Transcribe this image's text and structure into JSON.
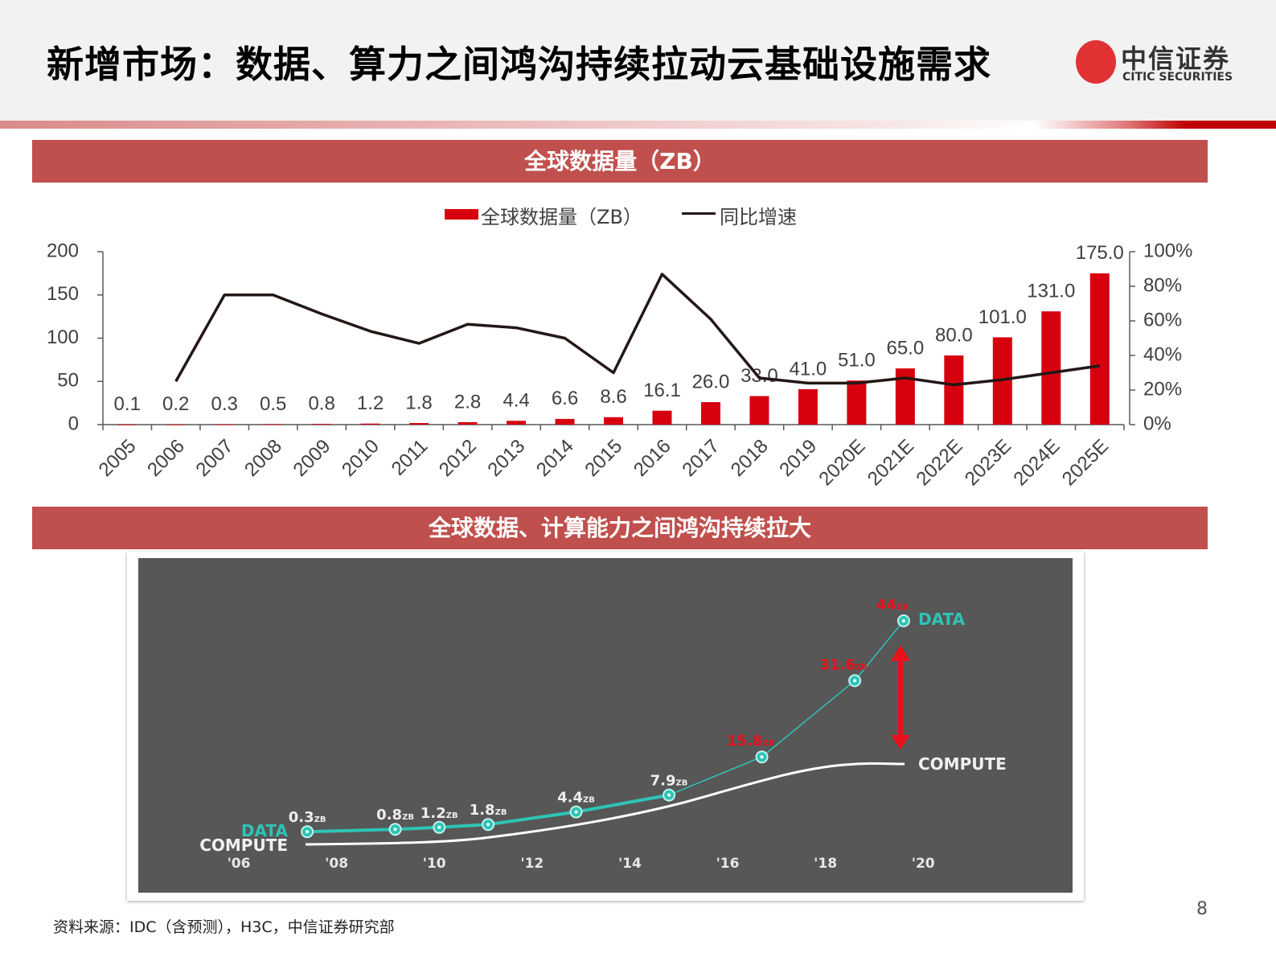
{
  "header": {
    "title": "新增市场：数据、算力之间鸿沟持续拉动云基础设施需求",
    "logo_cn": "中信证券",
    "logo_en": "CITIC SECURITIES"
  },
  "colors": {
    "banner": "#c0504d",
    "bar": "#d7000f",
    "line": "#231815",
    "data_line": "#2ec4b6",
    "highlight": "#e8101a"
  },
  "banner_top": "全球数据量（ZB）",
  "banner_bottom": "全球数据、计算能力之间鸿沟持续拉大",
  "chart_data": [
    {
      "type": "bar+line",
      "title": "",
      "legend": {
        "bar": "全球数据量（ZB）",
        "line": "同比增速",
        "placement": "top-center"
      },
      "categories": [
        "2005",
        "2006",
        "2007",
        "2008",
        "2009",
        "2010",
        "2011",
        "2012",
        "2013",
        "2014",
        "2015",
        "2016",
        "2017",
        "2018",
        "2019",
        "2020E",
        "2021E",
        "2022E",
        "2023E",
        "2024E",
        "2025E"
      ],
      "series": [
        {
          "name": "全球数据量（ZB）",
          "type": "bar",
          "axis": "left",
          "values": [
            0.1,
            0.2,
            0.3,
            0.5,
            0.8,
            1.2,
            1.8,
            2.8,
            4.4,
            6.6,
            8.6,
            16.1,
            26.0,
            33.0,
            41.0,
            51.0,
            65.0,
            80.0,
            101.0,
            131.0,
            175.0
          ],
          "labels": [
            "0.1",
            "0.2",
            "0.3",
            "0.5",
            "0.8",
            "1.2",
            "1.8",
            "2.8",
            "4.4",
            "6.6",
            "8.6",
            "16.1",
            "26.0",
            "33.0",
            "41.0",
            "51.0",
            "65.0",
            "80.0",
            "101.0",
            "131.0",
            "175.0"
          ]
        },
        {
          "name": "同比增速",
          "type": "line",
          "axis": "right",
          "unit": "%",
          "values": [
            null,
            25,
            75,
            75,
            64,
            54,
            47,
            58,
            56,
            50,
            30,
            87,
            61,
            27,
            24,
            24,
            27,
            23,
            26,
            30,
            34
          ]
        }
      ],
      "y_left": {
        "range": [
          0,
          200
        ],
        "ticks": [
          "0",
          "50",
          "100",
          "150",
          "200"
        ]
      },
      "y_right": {
        "range": [
          0,
          100
        ],
        "ticks": [
          "0%",
          "20%",
          "40%",
          "60%",
          "80%",
          "100%"
        ]
      },
      "grid": false
    },
    {
      "type": "line",
      "x_ticks": [
        "'06",
        "'08",
        "'10",
        "'12",
        "'14",
        "'16",
        "'18",
        "'20"
      ],
      "series": [
        {
          "name": "DATA",
          "unit": "ZB",
          "x": [
            2007.4,
            2009.2,
            2010.1,
            2011.1,
            2012.9,
            2014.8,
            2016.7,
            2018.6,
            2019.6
          ],
          "values": [
            0.3,
            0.8,
            1.2,
            1.8,
            4.4,
            7.9,
            15.8,
            31.6,
            44
          ],
          "labels": [
            "0.3",
            "0.8",
            "1.2",
            "1.8",
            "4.4",
            "7.9",
            "15.8",
            "31.6",
            "44"
          ],
          "highlighted": [
            false,
            false,
            false,
            false,
            false,
            false,
            true,
            true,
            true
          ]
        },
        {
          "name": "COMPUTE"
        }
      ],
      "unit_label": "ZB",
      "grid": false,
      "background": "#575757"
    }
  ],
  "footer": {
    "source": "资料来源：IDC（含预测），H3C，中信证券研究部",
    "page": "8"
  }
}
